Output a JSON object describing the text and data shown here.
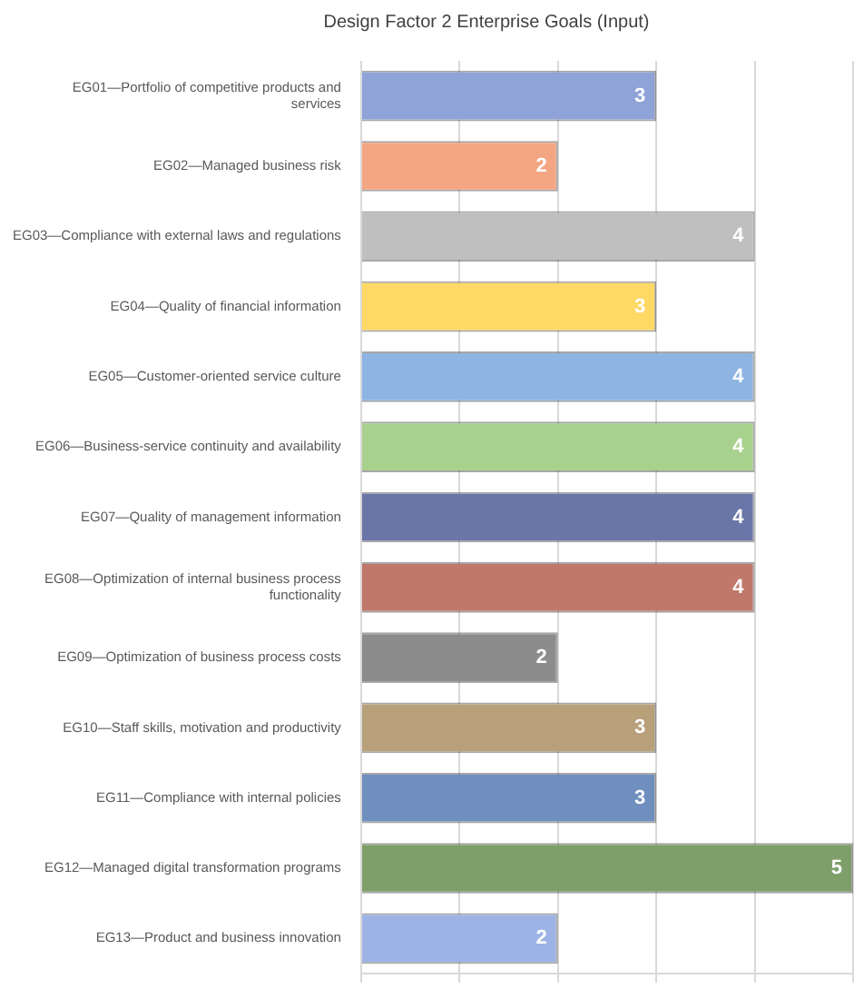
{
  "chart_data": {
    "type": "bar",
    "orientation": "horizontal",
    "title": "Design Factor 2 Enterprise Goals (Input)",
    "categories": [
      "EG01—Portfolio of competitive products and services",
      "EG02—Managed business risk",
      "EG03—Compliance with external laws and regulations",
      "EG04—Quality of financial information",
      "EG05—Customer-oriented service culture",
      "EG06—Business-service continuity and availability",
      "EG07—Quality of management information",
      "EG08—Optimization of internal business process functionality",
      "EG09—Optimization of business process costs",
      "EG10—Staff skills, motivation and productivity",
      "EG11—Compliance with internal policies",
      "EG12—Managed digital transformation programs",
      "EG13—Product and business innovation"
    ],
    "values": [
      3,
      2,
      4,
      3,
      4,
      4,
      4,
      4,
      2,
      3,
      3,
      5,
      2
    ],
    "colors": [
      "#8fa3d8",
      "#f4a582",
      "#bfbfbf",
      "#ffd966",
      "#8db4e2",
      "#a9d18e",
      "#6b76a8",
      "#c0786a",
      "#8c8c8c",
      "#b8a07a",
      "#6f8fbf",
      "#7f9f6a",
      "#9db3e5"
    ],
    "xlim": [
      0,
      5
    ],
    "xticks": [
      {
        "value": 0,
        "label": null
      },
      {
        "value": 1,
        "label": null
      },
      {
        "value": 2,
        "label": null
      },
      {
        "value": 3,
        "label": null
      },
      {
        "value": 4,
        "label": null
      },
      {
        "value": 5,
        "label": null
      }
    ],
    "grid": "x",
    "data_labels": true,
    "legend": false,
    "tick_labels": "y"
  }
}
